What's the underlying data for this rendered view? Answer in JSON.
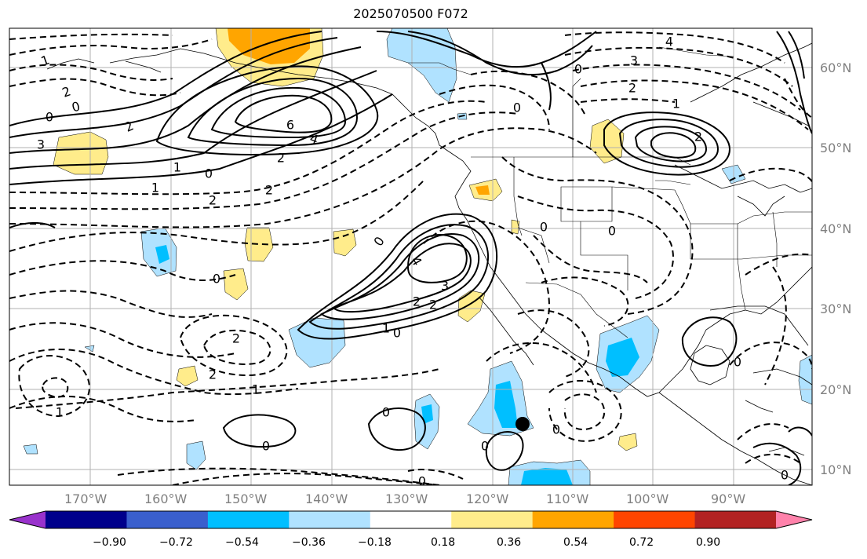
{
  "title": "2025070500 F072",
  "map": {
    "lon_labels": [
      "170°W",
      "160°W",
      "150°W",
      "140°W",
      "130°W",
      "120°W",
      "110°W",
      "100°W",
      "90°W"
    ],
    "lat_labels": [
      "60°N",
      "50°N",
      "40°N",
      "30°N",
      "20°N",
      "10°N"
    ],
    "contour_labels": [
      {
        "text": "1"
      },
      {
        "text": "2"
      },
      {
        "text": "0"
      },
      {
        "text": "0"
      },
      {
        "text": "3"
      },
      {
        "text": "2"
      },
      {
        "text": "6"
      },
      {
        "text": "4"
      },
      {
        "text": "2"
      },
      {
        "text": "1"
      },
      {
        "text": "0"
      },
      {
        "text": "1"
      },
      {
        "text": "2"
      },
      {
        "text": "2"
      },
      {
        "text": "0"
      },
      {
        "text": "4"
      },
      {
        "text": "3"
      },
      {
        "text": "2"
      },
      {
        "text": "2"
      },
      {
        "text": "1"
      },
      {
        "text": "0"
      },
      {
        "text": "0"
      },
      {
        "text": "2"
      },
      {
        "text": "2"
      },
      {
        "text": "1"
      },
      {
        "text": "1"
      },
      {
        "text": "0"
      },
      {
        "text": "0"
      },
      {
        "text": "0"
      },
      {
        "text": "0"
      },
      {
        "text": "3"
      },
      {
        "text": "4"
      },
      {
        "text": "0"
      },
      {
        "text": "2"
      },
      {
        "text": "1"
      },
      {
        "text": "2"
      },
      {
        "text": "0"
      },
      {
        "text": "0"
      },
      {
        "text": "0"
      },
      {
        "text": "0"
      },
      {
        "text": "0"
      },
      {
        "text": "0"
      }
    ]
  },
  "colorbar": {
    "colors": [
      "#9932cc",
      "#00008b",
      "#3a5fcd",
      "#00bfff",
      "#b0e2ff",
      "#ffffff",
      "#ffec8b",
      "#ffa500",
      "#ff4500",
      "#b22222",
      "#ff82ab"
    ],
    "tick_labels": [
      "−0.90",
      "−0.72",
      "−0.54",
      "−0.36",
      "−0.18",
      "0.18",
      "0.36",
      "0.54",
      "0.72",
      "0.90"
    ]
  }
}
